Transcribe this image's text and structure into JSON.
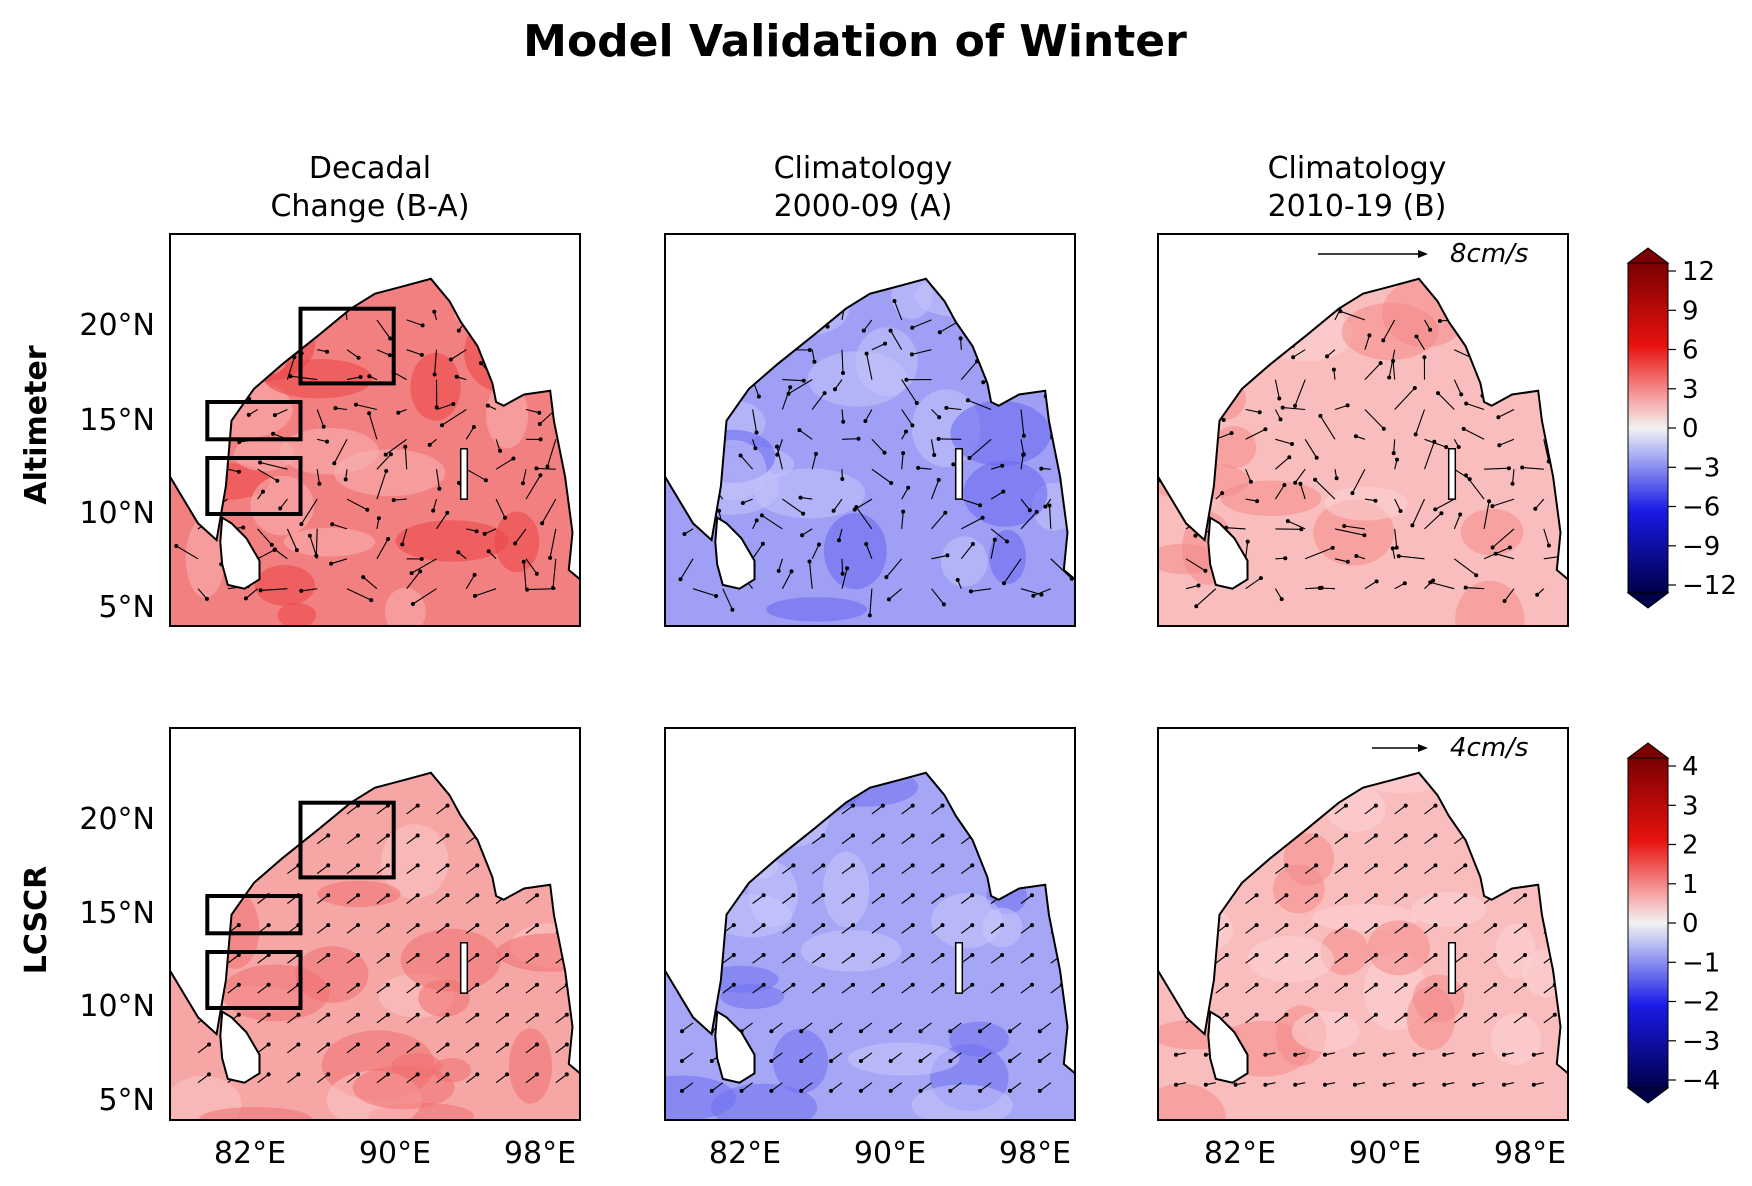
{
  "title": "Model Validation of Winter",
  "columns": [
    {
      "line1": "Decadal",
      "line2": "Change (B-A)"
    },
    {
      "line1": "Climatology",
      "line2": "2000-09 (A)"
    },
    {
      "line1": "Climatology",
      "line2": "2010-19 (B)"
    }
  ],
  "rows": [
    {
      "label": "Altimeter",
      "reference_vector": "8cm/s"
    },
    {
      "label": "LCSCR",
      "reference_vector": "4cm/s"
    }
  ],
  "x_ticks": [
    "82°E",
    "90°E",
    "98°E"
  ],
  "y_ticks": [
    "20°N",
    "15°N",
    "10°N",
    "5°N"
  ],
  "colorbars": [
    {
      "ticks": [
        "12",
        "9",
        "6",
        "3",
        "0",
        "−3",
        "−6",
        "−9",
        "−12"
      ]
    },
    {
      "ticks": [
        "4",
        "3",
        "2",
        "1",
        "0",
        "−1",
        "−2",
        "−3",
        "−4"
      ]
    }
  ],
  "colors": {
    "positive": "#e8120f",
    "negative": "#1a1ae6",
    "neutral": "#f2f2f2"
  },
  "chart_data": {
    "type": "heatmap",
    "title": "Model Validation of Winter",
    "x_range_deg_E": [
      77,
      99
    ],
    "y_range_deg_N": [
      4,
      25
    ],
    "x_ticks_deg_E": [
      82,
      90,
      98
    ],
    "y_ticks_deg_N": [
      20,
      15,
      10,
      5
    ],
    "panels": [
      {
        "row": "Altimeter",
        "column": "Decadal Change (B-A)",
        "dominant_sign": "positive",
        "typical_value": 7,
        "boxes_deg": [
          [
            84,
            21,
            89,
            17
          ],
          [
            79,
            16,
            84,
            14
          ],
          [
            79,
            13,
            84,
            10
          ]
        ]
      },
      {
        "row": "Altimeter",
        "column": "Climatology 2000-09 (A)",
        "dominant_sign": "negative",
        "typical_value": -5
      },
      {
        "row": "Altimeter",
        "column": "Climatology 2010-19 (B)",
        "dominant_sign": "positive",
        "typical_value": 3,
        "reference_vector": "8cm/s"
      },
      {
        "row": "LCSCR",
        "column": "Decadal Change (B-A)",
        "dominant_sign": "positive",
        "typical_value": 1.5,
        "boxes_deg": [
          [
            84,
            21,
            89,
            17
          ],
          [
            79,
            16,
            84,
            14
          ],
          [
            79,
            13,
            84,
            10
          ]
        ]
      },
      {
        "row": "LCSCR",
        "column": "Climatology 2000-09 (A)",
        "dominant_sign": "negative",
        "typical_value": -1.5
      },
      {
        "row": "LCSCR",
        "column": "Climatology 2010-19 (B)",
        "dominant_sign": "positive",
        "typical_value": 1,
        "reference_vector": "4cm/s"
      }
    ],
    "colorbar_ranges": [
      [
        -12,
        12
      ],
      [
        -4,
        4
      ]
    ],
    "grid": false
  }
}
